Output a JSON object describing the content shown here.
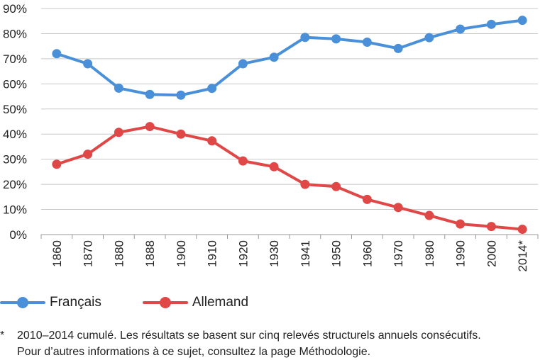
{
  "chart_data": {
    "type": "line",
    "categories": [
      "1860",
      "1870",
      "1880",
      "1888",
      "1900",
      "1910",
      "1920",
      "1930",
      "1941",
      "1950",
      "1960",
      "1970",
      "1980",
      "1990",
      "2000",
      "2014*"
    ],
    "series": [
      {
        "name": "Français",
        "color": "#4a90d9",
        "values": [
          72.0,
          68.0,
          58.3,
          55.8,
          55.5,
          58.2,
          68.0,
          70.6,
          78.5,
          77.9,
          76.6,
          74.1,
          78.4,
          81.8,
          83.7,
          85.3
        ]
      },
      {
        "name": "Allemand",
        "color": "#e04848",
        "values": [
          28.0,
          32.0,
          40.7,
          43.0,
          40.0,
          37.3,
          29.3,
          27.0,
          20.0,
          19.1,
          14.0,
          10.8,
          7.6,
          4.2,
          3.2,
          2.1
        ]
      }
    ],
    "y_ticks": [
      "0%",
      "10%",
      "20%",
      "30%",
      "40%",
      "50%",
      "60%",
      "70%",
      "80%",
      "90%"
    ],
    "ylim": [
      0,
      90
    ],
    "grid": true,
    "legend_position": "bottom-left"
  },
  "legend": {
    "items": [
      "Français",
      "Allemand"
    ]
  },
  "footnote": {
    "mark": "*",
    "line1": "2010–2014 cumulé. Les résultats se basent sur cinq relevés structurels annuels consécutifs.",
    "line2": "Pour d’autres informations à ce sujet, consultez la page Méthodologie."
  }
}
